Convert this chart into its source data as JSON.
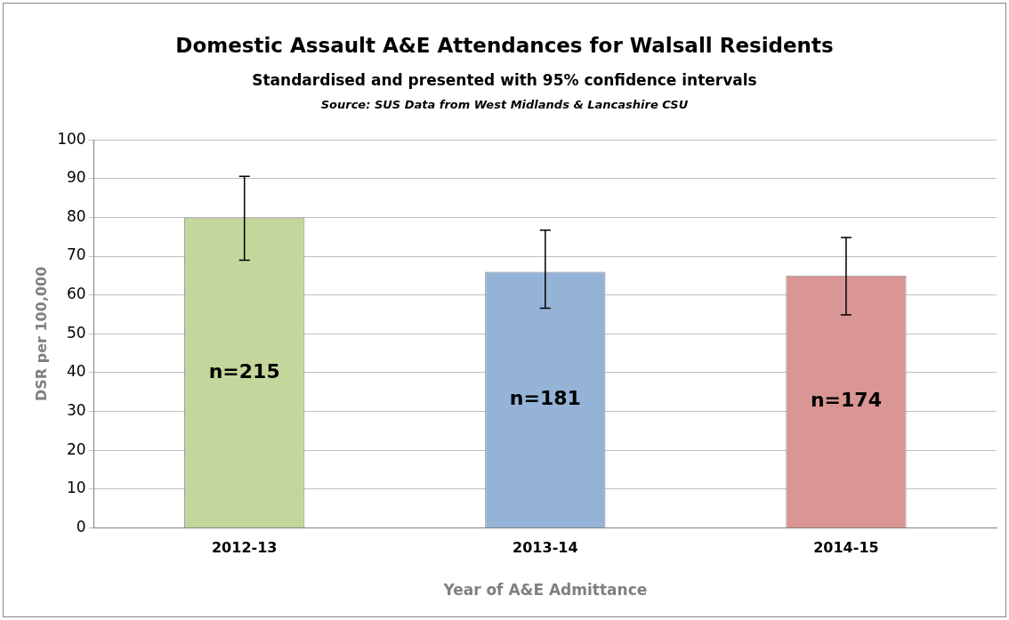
{
  "chart_data": {
    "type": "bar",
    "title": "Domestic Assault A&E Attendances for Walsall Residents",
    "subtitle": "Standardised and presented with 95% confidence intervals",
    "annotations": [
      "Source: SUS Data from West Midlands & Lancashire CSU",
      "n=215",
      "n=181",
      "n=174"
    ],
    "xlabel": "Year of A&E Admittance",
    "ylabel": "DSR per 100,000",
    "categories": [
      "2012-13",
      "2013-14",
      "2014-15"
    ],
    "values": [
      80,
      66,
      65
    ],
    "colors": [
      "#c3d69b",
      "#95b3d7",
      "#d99694"
    ],
    "errors": [
      [
        69,
        90.6
      ],
      [
        56.6,
        76.7
      ],
      [
        54.9,
        74.8
      ]
    ],
    "ylim": [
      0,
      100
    ],
    "yticks": [
      0,
      10,
      20,
      30,
      40,
      50,
      60,
      70,
      80,
      90,
      100
    ],
    "grid": "y",
    "legend": false
  }
}
